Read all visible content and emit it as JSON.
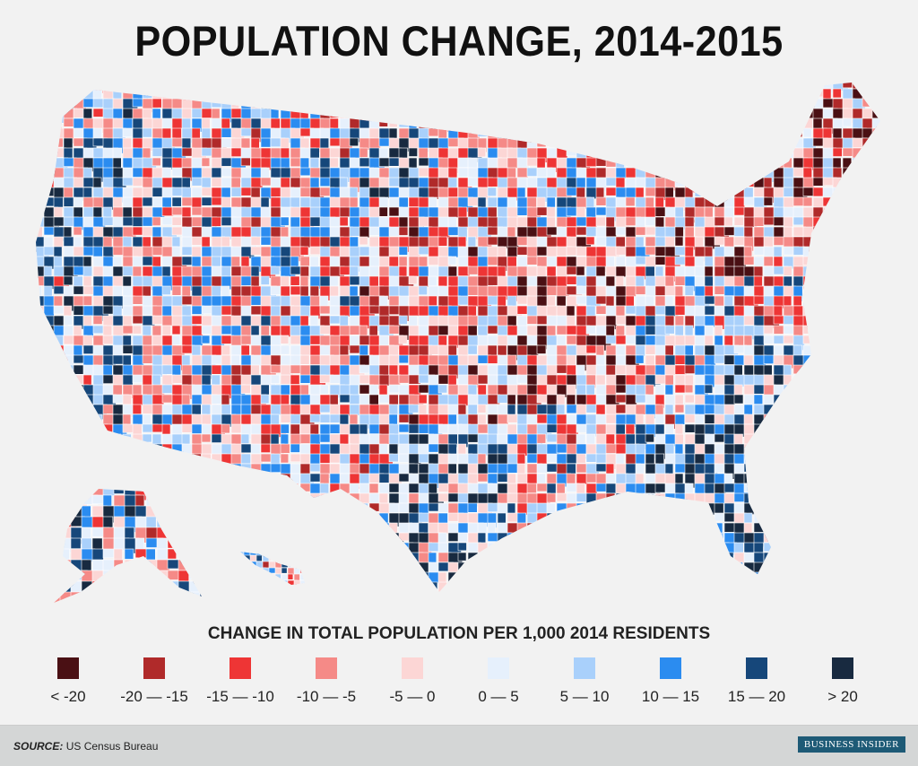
{
  "title": "POPULATION CHANGE, 2014-2015",
  "legend": {
    "title": "CHANGE IN TOTAL POPULATION PER 1,000 2014 RESIDENTS",
    "items": [
      {
        "label": "< -20",
        "color": "#4a1014"
      },
      {
        "label": "-20 — -15",
        "color": "#b02a2a"
      },
      {
        "label": "-15 — -10",
        "color": "#ee3535"
      },
      {
        "label": "-10 — -5",
        "color": "#f58a87"
      },
      {
        "label": "-5 — 0",
        "color": "#fcd6d5"
      },
      {
        "label": "0 — 5",
        "color": "#e6f0fc"
      },
      {
        "label": "5 — 10",
        "color": "#a9d0fb"
      },
      {
        "label": "10 — 15",
        "color": "#2b8cf0"
      },
      {
        "label": "15 — 20",
        "color": "#16477a"
      },
      {
        "label": "> 20",
        "color": "#182a40"
      }
    ]
  },
  "footer": {
    "source_label": "SOURCE:",
    "source_text": "US Census Bureau",
    "brand": "BUSINESS INSIDER"
  }
}
